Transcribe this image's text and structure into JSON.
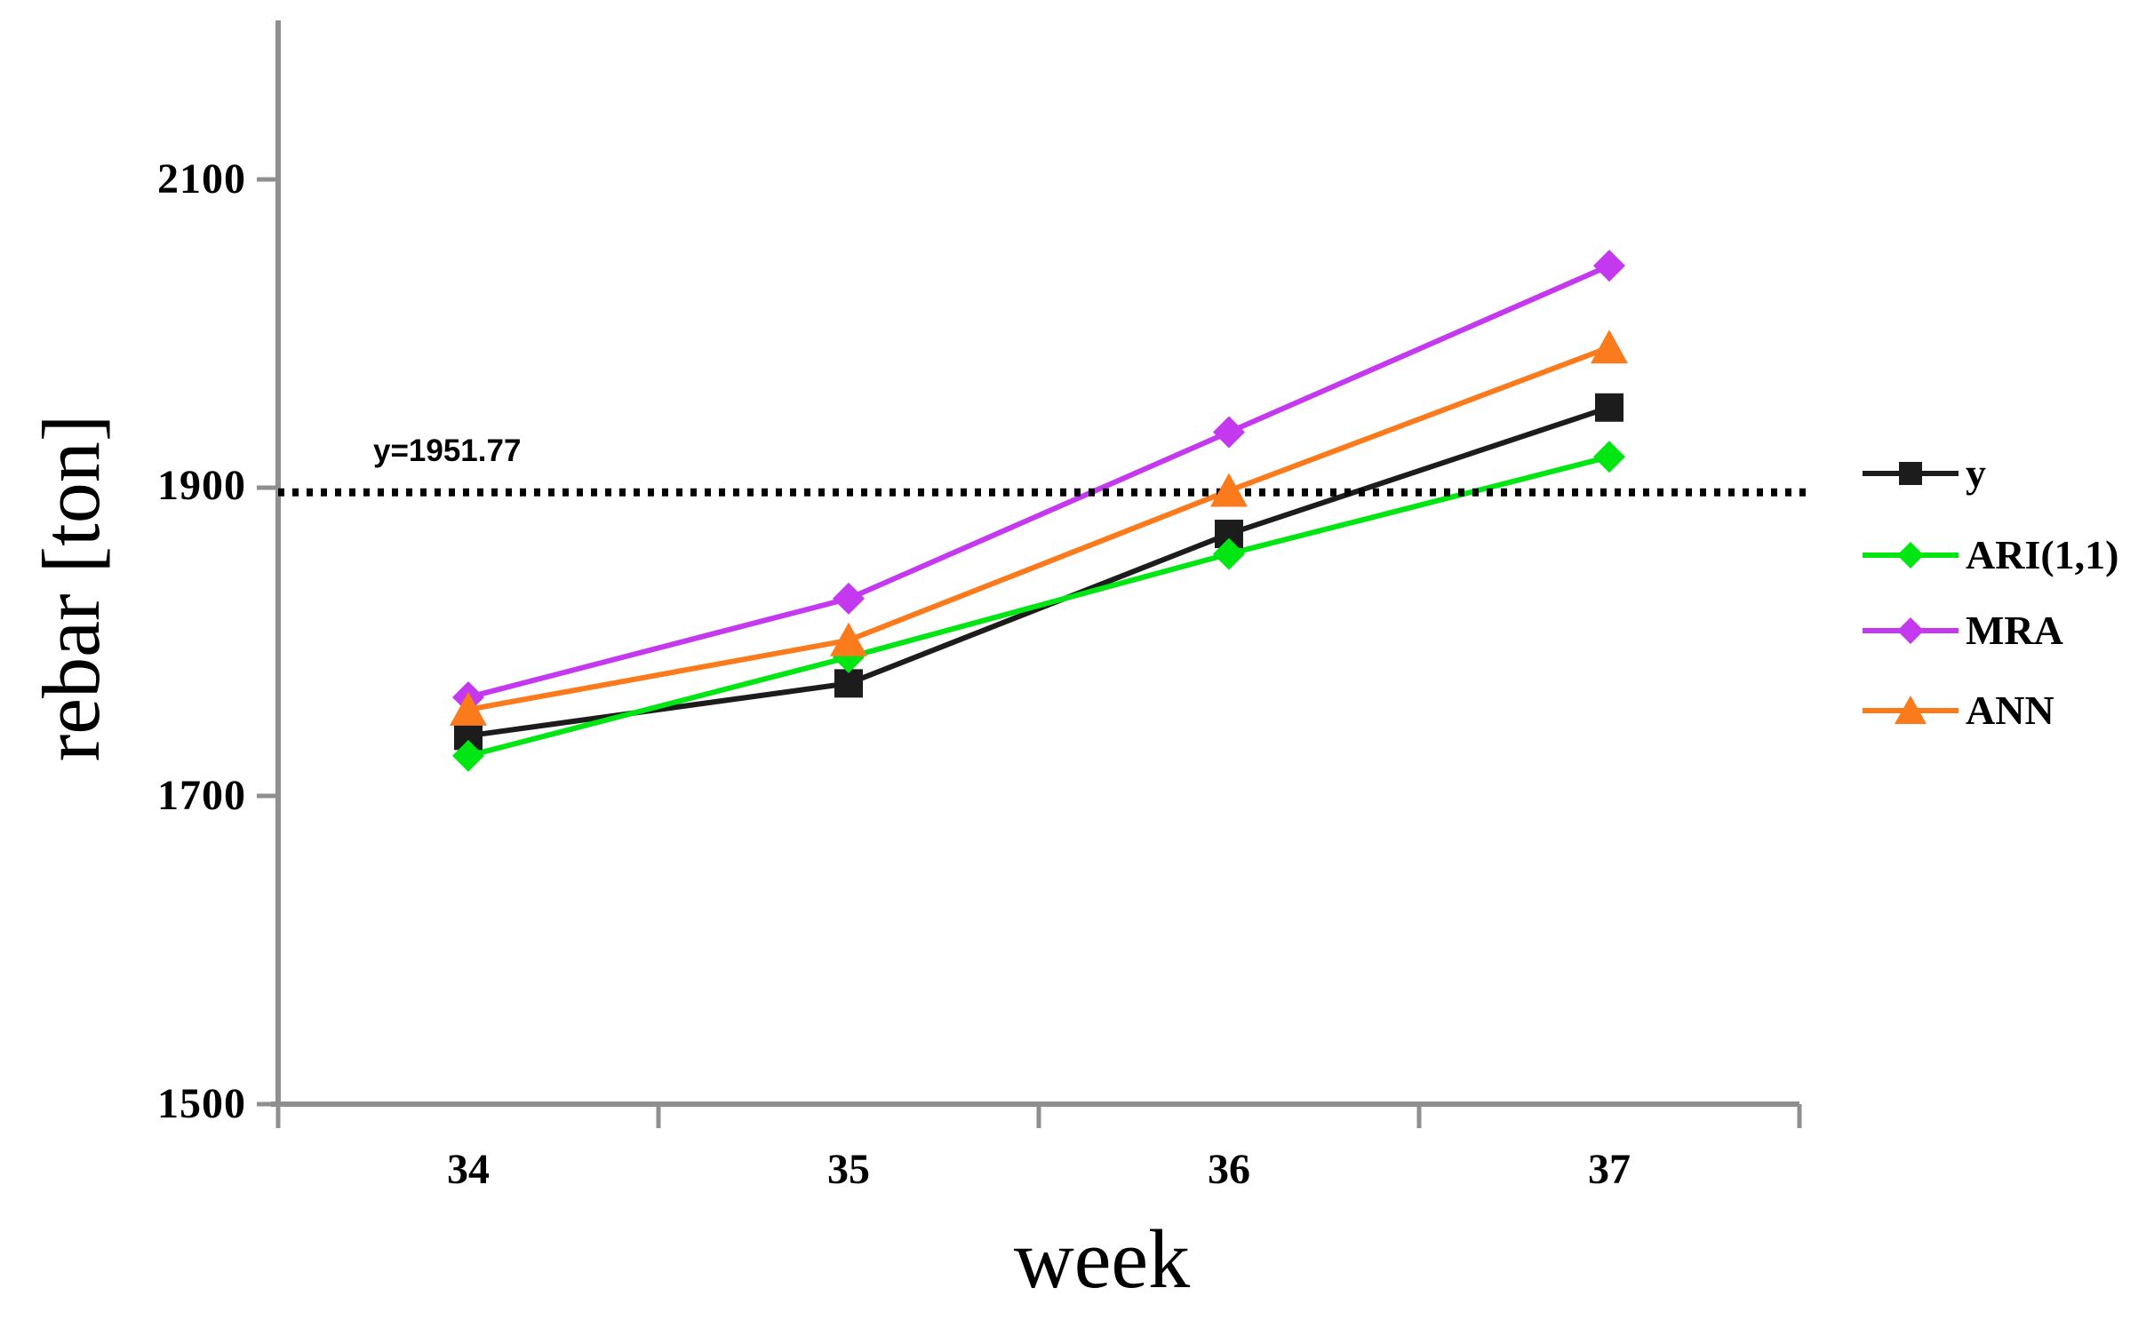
{
  "chart_data": {
    "type": "line",
    "title": "",
    "xlabel": "week",
    "ylabel": "rebar [ton]",
    "categories": [
      34,
      35,
      36,
      37
    ],
    "x_tick_labels": [
      "34",
      "35",
      "36",
      "37"
    ],
    "y_tick_labels": [
      "2100",
      "1900",
      "1700",
      "1500"
    ],
    "y_tick_values": [
      2100,
      1900,
      1700,
      1500
    ],
    "ylim": [
      1500,
      2200
    ],
    "grid": false,
    "legend_position": "right",
    "axis_color": "#8f8f8f",
    "series": [
      {
        "name": "y",
        "color": "#1c1c1c",
        "marker": "square",
        "values": [
          1739,
          1773,
          1870,
          1952
        ]
      },
      {
        "name": "ARI(1,1)",
        "color": "#00e613",
        "marker": "diamond",
        "values": [
          1726,
          1790,
          1857,
          1920
        ]
      },
      {
        "name": "MRA",
        "color": "#c438f0",
        "marker": "diamond",
        "values": [
          1764,
          1828,
          1936,
          2044
        ]
      },
      {
        "name": "ANN",
        "color": "#fb7a1c",
        "marker": "triangle",
        "values": [
          1756,
          1801,
          1898,
          1991
        ]
      }
    ],
    "annotation": {
      "label": "y=1951.77",
      "value": 1951.77
    },
    "ref_line": {
      "style": "dotted",
      "color": "#000000",
      "value_as_drawn": 1897
    }
  }
}
